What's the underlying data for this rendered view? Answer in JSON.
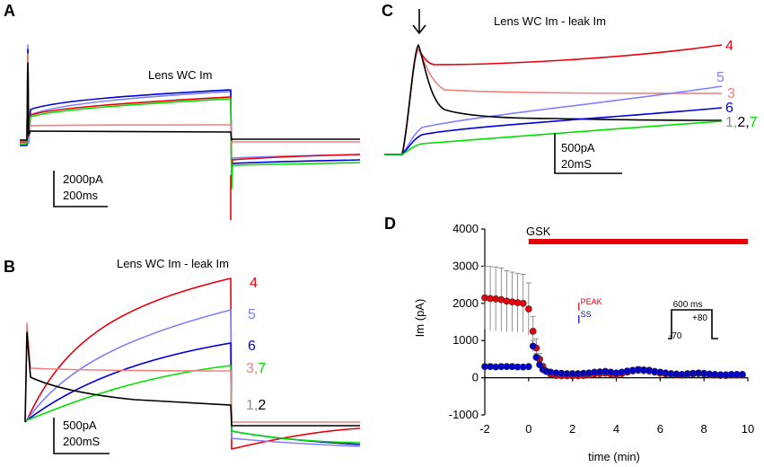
{
  "panels": {
    "A": {
      "label": "A",
      "title": "Lens WC Im",
      "scale_current": "2000pA",
      "scale_time": "200ms"
    },
    "B": {
      "label": "B",
      "title": "Lens WC Im - leak Im",
      "scale_current": "500pA",
      "scale_time": "200mS"
    },
    "C": {
      "label": "C",
      "title": "Lens WC Im - leak Im",
      "scale_current": "500pA",
      "scale_time": "20mS"
    },
    "D": {
      "label": "D",
      "drug_label": "GSK",
      "legend_peak_base": "I",
      "legend_peak_sup": "PEAK",
      "legend_ss_base": "I",
      "legend_ss_sup": "SS"
    }
  },
  "protocol": {
    "duration": "600 ms",
    "hold": "-70",
    "step": "+80"
  },
  "trace_labels": {
    "t4": "4",
    "t5": "5",
    "t6": "6",
    "t3": "3",
    "t7": "7",
    "t1": "1",
    "t2": "2",
    "sep": ","
  },
  "colors": {
    "red": "#e8000b",
    "blue": "#0000d8",
    "lightblue": "#8080ff",
    "pink": "#f08080",
    "green": "#00e000",
    "black": "#000000",
    "gray": "#8c8c8c",
    "navy": "#0000cc"
  },
  "chart_data": {
    "type": "scatter",
    "title": "",
    "xlabel": "time (min)",
    "ylabel": "Im (pA)",
    "xlim": [
      -2,
      10
    ],
    "ylim": [
      -1000,
      4000
    ],
    "xticks": [
      "-2",
      "0",
      "2",
      "4",
      "6",
      "8",
      "10"
    ],
    "yticks": [
      "-1000",
      "0",
      "1000",
      "2000",
      "3000",
      "4000"
    ],
    "drug_application": {
      "label": "GSK",
      "start": 0,
      "end": 10
    },
    "series": [
      {
        "name": "I PEAK",
        "color": "#e8000b",
        "x": [
          -2.0,
          -1.75,
          -1.5,
          -1.25,
          -1.0,
          -0.75,
          -0.5,
          -0.25,
          0.0,
          0.2,
          0.35,
          0.5,
          0.65,
          0.8,
          1.0,
          1.25,
          1.5,
          1.75,
          2.0,
          2.25,
          2.5,
          2.75,
          3.0,
          3.25,
          3.5,
          3.75,
          4.0,
          4.25,
          4.5,
          4.75,
          5.0,
          5.25,
          5.5,
          5.75,
          6.0,
          6.25,
          6.5,
          6.75,
          7.0,
          7.25,
          7.5,
          7.75,
          8.0,
          8.25,
          8.5,
          8.75,
          9.0,
          9.25,
          9.5,
          9.75
        ],
        "y": [
          2150,
          2130,
          2120,
          2100,
          2060,
          2040,
          2020,
          2000,
          1850,
          1250,
          800,
          500,
          300,
          180,
          100,
          60,
          50,
          50,
          50,
          50,
          60,
          80,
          100,
          110,
          120,
          100,
          80,
          110,
          150,
          180,
          200,
          190,
          180,
          150,
          120,
          100,
          90,
          80,
          70,
          90,
          100,
          110,
          100,
          80,
          70,
          60,
          60,
          70,
          70,
          70
        ],
        "errors": [
          850,
          860,
          860,
          850,
          820,
          800,
          790,
          780,
          700,
          400,
          250,
          150,
          80,
          60,
          40,
          40,
          40,
          40,
          40,
          40,
          40,
          50,
          60,
          70,
          80,
          70,
          60,
          70,
          80,
          90,
          100,
          90,
          80,
          80,
          70,
          60,
          50,
          50,
          40,
          50,
          60,
          60,
          50,
          50,
          40,
          40,
          40,
          40,
          40,
          40
        ]
      },
      {
        "name": "I SS",
        "color": "#0000cc",
        "x": [
          -2.0,
          -1.75,
          -1.5,
          -1.25,
          -1.0,
          -0.75,
          -0.5,
          -0.25,
          0.0,
          0.2,
          0.35,
          0.5,
          0.65,
          0.8,
          1.0,
          1.25,
          1.5,
          1.75,
          2.0,
          2.25,
          2.5,
          2.75,
          3.0,
          3.25,
          3.5,
          3.75,
          4.0,
          4.25,
          4.5,
          4.75,
          5.0,
          5.25,
          5.5,
          5.75,
          6.0,
          6.25,
          6.5,
          6.75,
          7.0,
          7.25,
          7.5,
          7.75,
          8.0,
          8.25,
          8.5,
          8.75,
          9.0,
          9.25,
          9.5,
          9.75
        ],
        "y": [
          300,
          300,
          290,
          300,
          300,
          300,
          290,
          290,
          300,
          850,
          550,
          350,
          220,
          170,
          150,
          130,
          120,
          110,
          110,
          110,
          120,
          130,
          150,
          160,
          170,
          150,
          130,
          150,
          180,
          200,
          220,
          210,
          200,
          170,
          150,
          130,
          110,
          100,
          90,
          110,
          120,
          130,
          120,
          100,
          90,
          80,
          80,
          90,
          90,
          90
        ],
        "errors": [
          40,
          40,
          40,
          40,
          40,
          40,
          40,
          40,
          40,
          150,
          100,
          80,
          60,
          50,
          40,
          40,
          40,
          40,
          40,
          40,
          40,
          40,
          50,
          50,
          60,
          50,
          50,
          50,
          60,
          60,
          70,
          60,
          60,
          50,
          50,
          40,
          40,
          40,
          40,
          40,
          40,
          40,
          40,
          40,
          40,
          40,
          40,
          40,
          40,
          40
        ]
      }
    ]
  }
}
